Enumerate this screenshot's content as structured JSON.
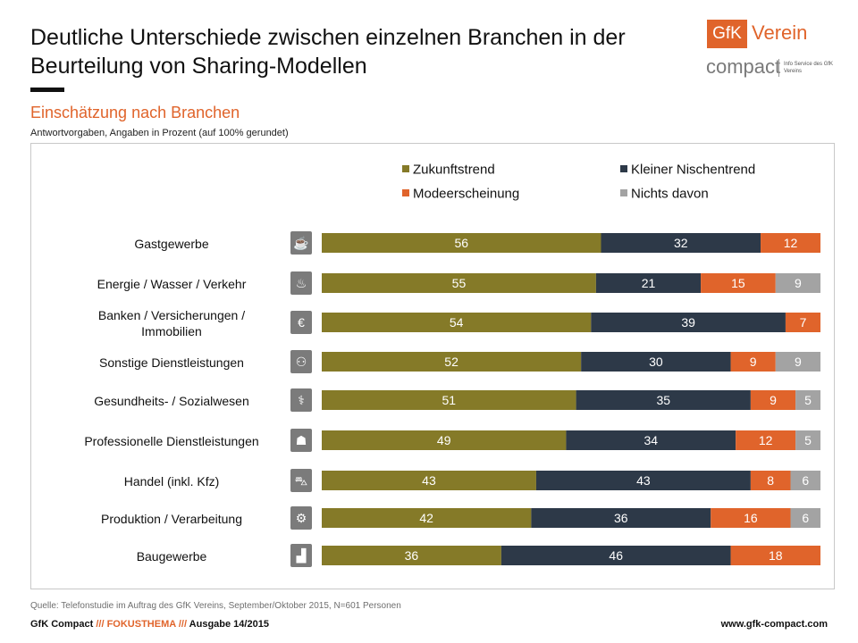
{
  "header": {
    "title": "Deutliche Unterschiede zwischen einzelnen Branchen in der Beurteilung von Sharing-Modellen",
    "subtitle": "Einschätzung  nach Branchen",
    "note": "Antwortvorgaben, Angaben in Prozent (auf 100% gerundet)"
  },
  "logo": {
    "box_text": "GfK",
    "verein": "Verein",
    "compact": "compact",
    "info": "Info Service des GfK Vereins"
  },
  "colors": {
    "zukunft": "#857a28",
    "nischen": "#2d3948",
    "mode": "#e0642b",
    "nichts": "#a3a3a3",
    "accent": "#e0642b"
  },
  "icons": [
    {
      "name": "coffee-cup-icon",
      "glyph": "☕"
    },
    {
      "name": "flame-icon",
      "glyph": "♨"
    },
    {
      "name": "euro-icon",
      "glyph": "€"
    },
    {
      "name": "people-icon",
      "glyph": "⚇"
    },
    {
      "name": "caduceus-icon",
      "glyph": "⚕"
    },
    {
      "name": "businessperson-icon",
      "glyph": "☗"
    },
    {
      "name": "shopping-bag-icon",
      "glyph": "⛍"
    },
    {
      "name": "gear-icon",
      "glyph": "⚙"
    },
    {
      "name": "building-blocks-icon",
      "glyph": "▟"
    }
  ],
  "chart_data": {
    "type": "bar",
    "orientation": "horizontal",
    "stacked": true,
    "legend_position": "top-right",
    "categories": [
      "Gastgewerbe",
      "Energie / Wasser / Verkehr",
      "Banken / Versicherungen  / Immobilien",
      "Sonstige Dienstleistungen",
      "Gesundheits-  / Sozialwesen",
      "Professionelle Dienstleistungen",
      "Handel (inkl. Kfz)",
      "Produktion  / Verarbeitung",
      "Baugewerbe"
    ],
    "series": [
      {
        "name": "Zukunftstrend",
        "values": [
          56,
          55,
          54,
          52,
          51,
          49,
          43,
          42,
          36
        ]
      },
      {
        "name": "Kleiner Nischentrend",
        "values": [
          32,
          21,
          39,
          30,
          35,
          34,
          43,
          36,
          46
        ]
      },
      {
        "name": "Modeerscheinung",
        "values": [
          12,
          15,
          7,
          9,
          9,
          12,
          8,
          16,
          18
        ]
      },
      {
        "name": "Nichts davon",
        "values": [
          0,
          9,
          0,
          9,
          5,
          5,
          6,
          6,
          0
        ]
      }
    ]
  },
  "footer": {
    "source": "Quelle: Telefonstudie im  Auftrag des GfK Vereins, September/Oktober 2015, N=601  Personen",
    "left_a": "GfK Compact",
    "sep1": "///",
    "focus": "FOKUSTHEMA",
    "sep2": "///",
    "issue": "Ausgabe 14/2015",
    "right": "www.gfk-compact.com"
  }
}
